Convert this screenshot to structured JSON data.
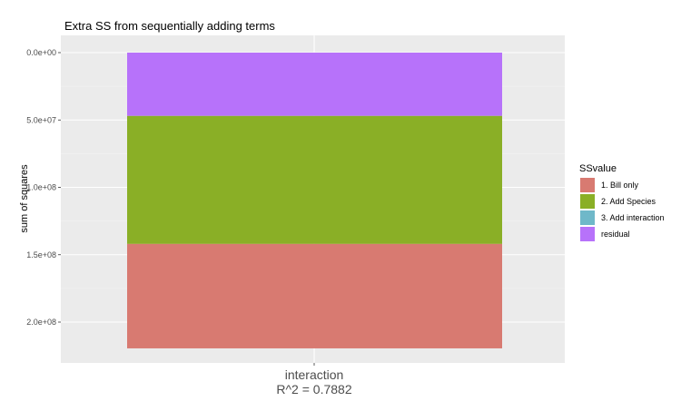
{
  "chart_data": {
    "type": "bar",
    "stacked": true,
    "title": "Extra SS from sequentially adding terms",
    "xlabel": "",
    "ylabel": "sum of squares",
    "categories": [
      "interaction"
    ],
    "category_sublabel": "R^2 = 0.7882",
    "y_reversed": true,
    "ylim": [
      0,
      220000000
    ],
    "y_ticks": [
      0,
      50000000,
      100000000,
      150000000,
      200000000
    ],
    "y_tick_labels": [
      "0.0e+00",
      "5.0e+07",
      "1.0e+08",
      "1.5e+08",
      "2.0e+08"
    ],
    "grid": true,
    "legend_position": "right",
    "legend_title": "SSvalue",
    "series": [
      {
        "name": "1. Bill only",
        "values": [
          77500000
        ],
        "color": "#D87A71"
      },
      {
        "name": "2. Add Species",
        "values": [
          95000000
        ],
        "color": "#8AAF26"
      },
      {
        "name": "3. Add interaction",
        "values": [
          0
        ],
        "color": "#6FB8C9"
      },
      {
        "name": "residual",
        "values": [
          47000000
        ],
        "color": "#B772FA"
      }
    ]
  }
}
